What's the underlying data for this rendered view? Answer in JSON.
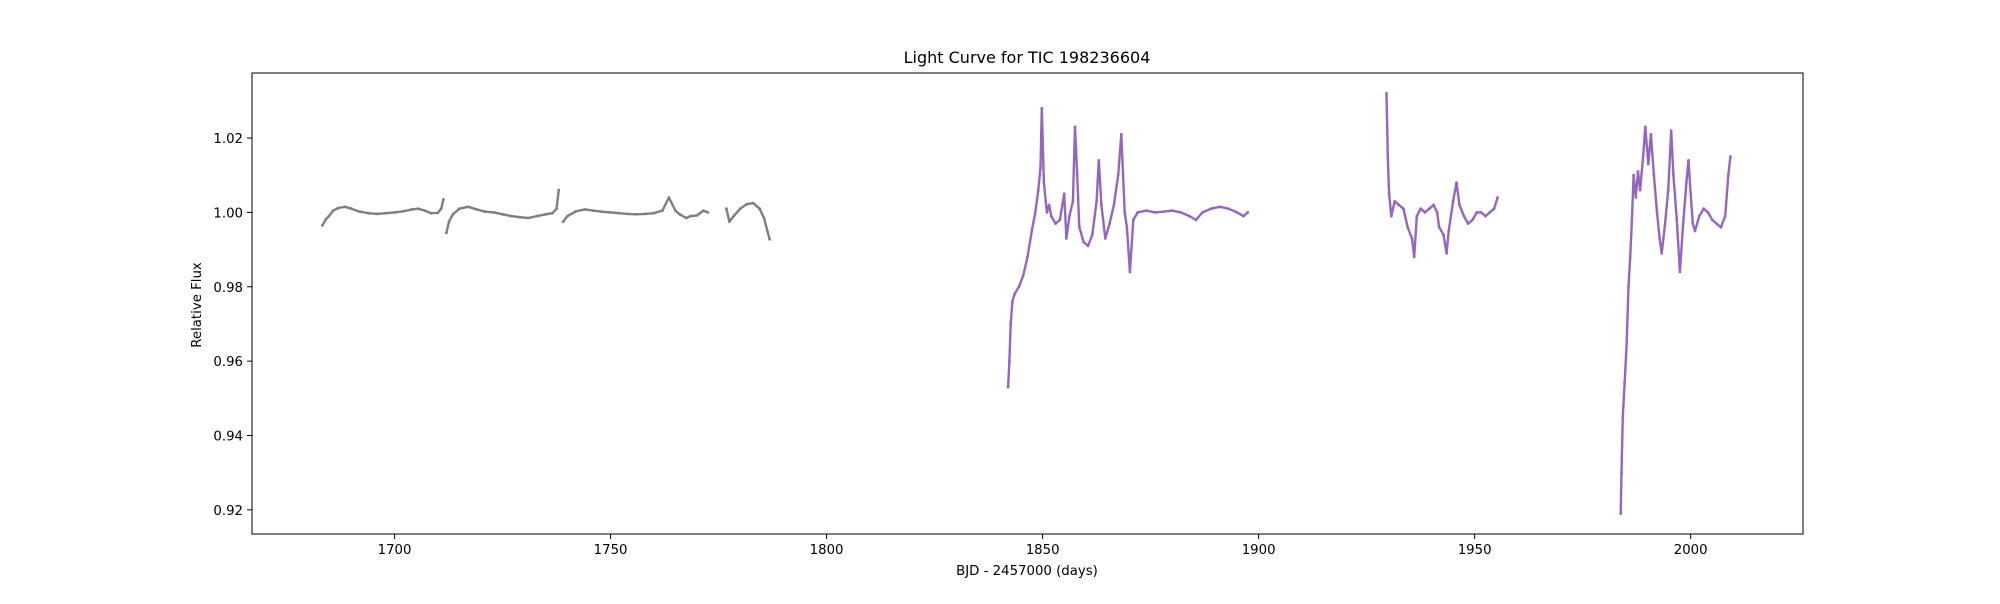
{
  "chart_data": {
    "type": "scatter",
    "title": "Light Curve for TIC 198236604",
    "xlabel": "BJD - 2457000 (days)",
    "ylabel": "Relative Flux",
    "xlim": [
      1667,
      2026
    ],
    "ylim": [
      0.9135,
      1.0375
    ],
    "xticks": [
      {
        "value": 1700,
        "label": "1700"
      },
      {
        "value": 1750,
        "label": "1750"
      },
      {
        "value": 1800,
        "label": "1800"
      },
      {
        "value": 1850,
        "label": "1850"
      },
      {
        "value": 1900,
        "label": "1900"
      },
      {
        "value": 1950,
        "label": "1950"
      },
      {
        "value": 2000,
        "label": "2000"
      }
    ],
    "yticks": [
      {
        "value": 0.92,
        "label": "0.92"
      },
      {
        "value": 0.94,
        "label": "0.94"
      },
      {
        "value": 0.96,
        "label": "0.96"
      },
      {
        "value": 0.98,
        "label": "0.98"
      },
      {
        "value": 1.0,
        "label": "1.00"
      },
      {
        "value": 1.02,
        "label": "1.02"
      }
    ],
    "grid": false,
    "legend": "none",
    "series": [
      {
        "color": "#7f7f7f",
        "segments": [
          [
            [
              1683.3,
              0.9965
            ],
            [
              1684.0,
              0.998
            ],
            [
              1684.8,
              0.999
            ],
            [
              1685.8,
              1.0005
            ],
            [
              1687.0,
              1.0012
            ],
            [
              1688.5,
              1.0015
            ],
            [
              1690.0,
              1.001
            ],
            [
              1692.0,
              1.0002
            ],
            [
              1694.0,
              0.9998
            ],
            [
              1696.0,
              0.9996
            ],
            [
              1698.0,
              0.9998
            ],
            [
              1700.0,
              1.0
            ],
            [
              1702.0,
              1.0003
            ],
            [
              1704.0,
              1.0008
            ],
            [
              1705.5,
              1.001
            ],
            [
              1707.0,
              1.0005
            ],
            [
              1708.5,
              0.9998
            ],
            [
              1710.0,
              0.9999
            ],
            [
              1710.8,
              1.001
            ],
            [
              1711.3,
              1.0035
            ]
          ],
          [
            [
              1712.0,
              0.9945
            ],
            [
              1712.6,
              0.9975
            ],
            [
              1713.5,
              0.9995
            ],
            [
              1715.0,
              1.001
            ],
            [
              1717.0,
              1.0015
            ],
            [
              1719.0,
              1.0008
            ],
            [
              1721.0,
              1.0002
            ],
            [
              1723.0,
              1.0
            ],
            [
              1725.0,
              0.9995
            ],
            [
              1727.0,
              0.999
            ],
            [
              1729.0,
              0.9987
            ],
            [
              1731.0,
              0.9985
            ],
            [
              1733.0,
              0.999
            ],
            [
              1735.0,
              0.9995
            ],
            [
              1736.5,
              0.9998
            ],
            [
              1737.5,
              1.001
            ],
            [
              1738.0,
              1.006
            ]
          ],
          [
            [
              1739.0,
              0.9975
            ],
            [
              1740.0,
              0.999
            ],
            [
              1742.0,
              1.0003
            ],
            [
              1744.0,
              1.0008
            ],
            [
              1746.0,
              1.0005
            ],
            [
              1748.0,
              1.0002
            ],
            [
              1750.0,
              1.0
            ],
            [
              1752.0,
              0.9998
            ],
            [
              1754.0,
              0.9996
            ],
            [
              1756.0,
              0.9995
            ],
            [
              1758.0,
              0.9996
            ],
            [
              1760.0,
              0.9998
            ],
            [
              1762.0,
              1.0005
            ],
            [
              1763.5,
              1.004
            ],
            [
              1765.0,
              1.0005
            ],
            [
              1766.0,
              0.9995
            ],
            [
              1767.5,
              0.9985
            ],
            [
              1768.5,
              0.999
            ],
            [
              1770.0,
              0.9992
            ],
            [
              1771.5,
              1.0005
            ],
            [
              1772.5,
              1.0
            ]
          ],
          [
            [
              1776.8,
              1.001
            ],
            [
              1777.5,
              0.9975
            ],
            [
              1778.5,
              0.999
            ],
            [
              1780.0,
              1.001
            ],
            [
              1781.5,
              1.0022
            ],
            [
              1783.0,
              1.0025
            ],
            [
              1784.5,
              1.001
            ],
            [
              1785.5,
              0.9985
            ],
            [
              1786.3,
              0.995
            ],
            [
              1786.8,
              0.9928
            ]
          ]
        ]
      },
      {
        "color": "#9467bd",
        "segments": [
          [
            [
              1842.0,
              0.953
            ],
            [
              1842.3,
              0.96
            ],
            [
              1842.6,
              0.97
            ],
            [
              1843.0,
              0.976
            ],
            [
              1843.5,
              0.978
            ],
            [
              1844.5,
              0.98
            ],
            [
              1845.5,
              0.983
            ],
            [
              1846.5,
              0.988
            ],
            [
              1847.5,
              0.995
            ],
            [
              1848.3,
              1.0
            ],
            [
              1849.0,
              1.006
            ],
            [
              1849.5,
              1.012
            ],
            [
              1849.8,
              1.028
            ],
            [
              1850.3,
              1.008
            ],
            [
              1851.0,
              1.0
            ],
            [
              1851.5,
              1.002
            ],
            [
              1852.0,
              0.999
            ],
            [
              1853.0,
              0.997
            ],
            [
              1854.0,
              0.998
            ],
            [
              1855.0,
              1.005
            ],
            [
              1855.5,
              0.993
            ],
            [
              1856.2,
              0.999
            ],
            [
              1857.0,
              1.003
            ],
            [
              1857.5,
              1.023
            ],
            [
              1858.0,
              1.01
            ],
            [
              1858.5,
              0.996
            ],
            [
              1859.5,
              0.992
            ],
            [
              1860.5,
              0.991
            ],
            [
              1861.5,
              0.994
            ],
            [
              1862.5,
              1.003
            ],
            [
              1863.0,
              1.014
            ],
            [
              1863.6,
              1.002
            ],
            [
              1864.5,
              0.993
            ],
            [
              1865.5,
              0.997
            ],
            [
              1866.5,
              1.002
            ],
            [
              1867.5,
              1.01
            ],
            [
              1868.2,
              1.021
            ],
            [
              1869.0,
              1.0
            ],
            [
              1869.5,
              0.996
            ],
            [
              1870.2,
              0.984
            ],
            [
              1871.0,
              0.998
            ],
            [
              1872.0,
              1.0
            ],
            [
              1874.0,
              1.0005
            ],
            [
              1876.0,
              1.0
            ],
            [
              1878.0,
              1.0002
            ],
            [
              1880.0,
              1.0005
            ],
            [
              1882.0,
              1.0
            ],
            [
              1884.0,
              0.999
            ],
            [
              1885.5,
              0.998
            ],
            [
              1887.0,
              1.0
            ],
            [
              1889.0,
              1.001
            ],
            [
              1891.0,
              1.0015
            ],
            [
              1893.0,
              1.001
            ],
            [
              1895.0,
              1.0
            ],
            [
              1896.5,
              0.999
            ],
            [
              1897.5,
              1.0
            ]
          ],
          [
            [
              1929.6,
              1.032
            ],
            [
              1929.9,
              1.015
            ],
            [
              1930.2,
              1.005
            ],
            [
              1930.7,
              0.999
            ],
            [
              1931.5,
              1.003
            ],
            [
              1932.5,
              1.002
            ],
            [
              1933.5,
              1.001
            ],
            [
              1934.5,
              0.996
            ],
            [
              1935.5,
              0.993
            ],
            [
              1936.0,
              0.988
            ],
            [
              1936.6,
              0.999
            ],
            [
              1937.5,
              1.001
            ],
            [
              1938.5,
              1.0
            ],
            [
              1939.5,
              1.001
            ],
            [
              1940.5,
              1.002
            ],
            [
              1941.3,
              1.0
            ],
            [
              1941.8,
              0.996
            ],
            [
              1942.8,
              0.994
            ],
            [
              1943.5,
              0.989
            ],
            [
              1944.0,
              0.995
            ],
            [
              1945.0,
              1.003
            ],
            [
              1945.8,
              1.008
            ],
            [
              1946.5,
              1.002
            ],
            [
              1947.5,
              0.999
            ],
            [
              1948.5,
              0.997
            ],
            [
              1949.5,
              0.998
            ],
            [
              1950.5,
              1.0
            ],
            [
              1951.5,
              1.0
            ],
            [
              1952.5,
              0.999
            ],
            [
              1953.5,
              1.0
            ],
            [
              1954.5,
              1.001
            ],
            [
              1955.3,
              1.004
            ]
          ],
          [
            [
              1983.8,
              0.919
            ],
            [
              1984.0,
              0.93
            ],
            [
              1984.3,
              0.945
            ],
            [
              1984.7,
              0.954
            ],
            [
              1985.2,
              0.965
            ],
            [
              1985.6,
              0.98
            ],
            [
              1986.0,
              0.988
            ],
            [
              1986.4,
              0.998
            ],
            [
              1986.8,
              1.01
            ],
            [
              1987.3,
              1.004
            ],
            [
              1987.8,
              1.011
            ],
            [
              1988.3,
              1.006
            ],
            [
              1989.0,
              1.015
            ],
            [
              1989.5,
              1.023
            ],
            [
              1990.2,
              1.013
            ],
            [
              1990.8,
              1.021
            ],
            [
              1991.5,
              1.01
            ],
            [
              1992.2,
              1.0
            ],
            [
              1992.8,
              0.993
            ],
            [
              1993.3,
              0.989
            ],
            [
              1994.0,
              0.996
            ],
            [
              1994.8,
              1.006
            ],
            [
              1995.5,
              1.022
            ],
            [
              1996.0,
              1.01
            ],
            [
              1996.8,
              0.998
            ],
            [
              1997.5,
              0.984
            ],
            [
              1998.2,
              0.996
            ],
            [
              1999.0,
              1.008
            ],
            [
              1999.5,
              1.014
            ],
            [
              2000.0,
              1.005
            ],
            [
              2000.5,
              0.997
            ],
            [
              2001.0,
              0.995
            ],
            [
              2002.0,
              0.999
            ],
            [
              2003.0,
              1.001
            ],
            [
              2004.0,
              1.0
            ],
            [
              2005.0,
              0.998
            ],
            [
              2006.0,
              0.997
            ],
            [
              2007.0,
              0.996
            ],
            [
              2008.0,
              0.999
            ],
            [
              2008.7,
              1.01
            ],
            [
              2009.2,
              1.015
            ]
          ]
        ]
      }
    ]
  }
}
